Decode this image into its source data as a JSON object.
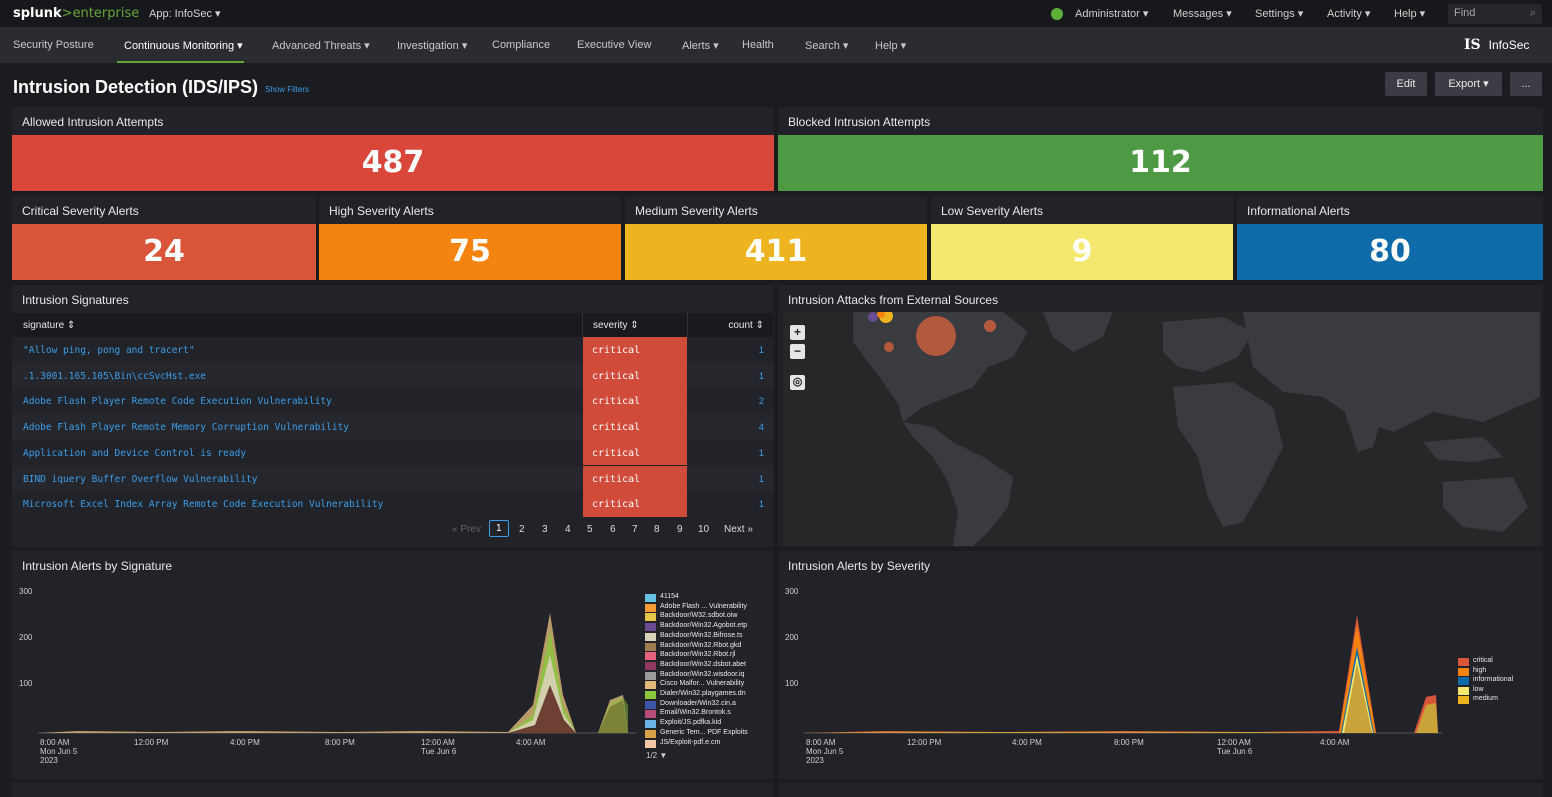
{
  "topbar": {
    "logo_splunk": "splunk",
    "logo_gt": ">",
    "logo_enterprise": "enterprise",
    "app_label": "App: InfoSec ▾",
    "menus": [
      "Administrator ▾",
      "Messages ▾",
      "Settings ▾",
      "Activity ▾",
      "Help ▾"
    ],
    "find_placeholder": "Find"
  },
  "nav": {
    "items": [
      "Security Posture",
      "Continuous Monitoring ▾",
      "Advanced Threats ▾",
      "Investigation ▾",
      "Compliance",
      "Executive View",
      "Alerts ▾",
      "Health",
      "Search ▾",
      "Help ▾"
    ],
    "active_index": 1,
    "brand_logo": "IS",
    "brand_name": "InfoSec"
  },
  "dashboard": {
    "title": "Intrusion Detection (IDS/IPS)",
    "show_filters": "Show Filters",
    "edit_label": "Edit",
    "export_label": "Export ▾",
    "more_label": "..."
  },
  "singles": {
    "allowed": {
      "title": "Allowed Intrusion Attempts",
      "value": "487",
      "color": "#d8473a"
    },
    "blocked": {
      "title": "Blocked Intrusion Attempts",
      "value": "112",
      "color": "#4e9a44"
    },
    "critical": {
      "title": "Critical Severity Alerts",
      "value": "24",
      "color": "#d8553a"
    },
    "high": {
      "title": "High Severity Alerts",
      "value": "75",
      "color": "#f5830f"
    },
    "medium": {
      "title": "Medium Severity Alerts",
      "value": "411",
      "color": "#edb41f"
    },
    "low": {
      "title": "Low Severity Alerts",
      "value": "9",
      "color": "#f4e96e"
    },
    "informational": {
      "title": "Informational Alerts",
      "value": "80",
      "color": "#0e6aa8"
    }
  },
  "signatures_table": {
    "title": "Intrusion Signatures",
    "headers": {
      "signature": "signature ⇕",
      "severity": "severity ⇕",
      "count": "count ⇕"
    },
    "rows": [
      {
        "signature": "\"Allow ping, pong and tracert\"",
        "severity": "critical",
        "count": "1"
      },
      {
        "signature": ".1.3001.165.105\\Bin\\ccSvcHst.exe",
        "severity": "critical",
        "count": "1"
      },
      {
        "signature": "Adobe Flash Player Remote Code Execution Vulnerability",
        "severity": "critical",
        "count": "2"
      },
      {
        "signature": "Adobe Flash Player Remote Memory Corruption Vulnerability",
        "severity": "critical",
        "count": "4"
      },
      {
        "signature": "Application and Device Control is ready",
        "severity": "critical",
        "count": "1"
      },
      {
        "signature": "BIND iquery Buffer Overflow Vulnerability",
        "severity": "critical",
        "count": "1"
      },
      {
        "signature": "Microsoft Excel Index Array Remote Code Execution Vulnerability",
        "severity": "critical",
        "count": "1"
      }
    ],
    "pager": {
      "prev": "« Prev",
      "pages": [
        "1",
        "2",
        "3",
        "4",
        "5",
        "6",
        "7",
        "8",
        "9",
        "10"
      ],
      "next": "Next »"
    }
  },
  "map_panel": {
    "title": "Intrusion Attacks from External Sources",
    "zoom_in": "+",
    "zoom_out": "−",
    "locate": "◎"
  },
  "chart_signature": {
    "title": "Intrusion Alerts by Signature",
    "y_ticks": [
      "300",
      "200",
      "100"
    ],
    "x_ticks": [
      [
        "8:00 AM",
        "Mon Jun 5",
        "2023"
      ],
      [
        "12:00 PM"
      ],
      [
        "4:00 PM"
      ],
      [
        "8:00 PM"
      ],
      [
        "12:00 AM",
        "Tue Jun 6"
      ],
      [
        "4:00 AM"
      ]
    ],
    "legend": [
      {
        "name": "41154",
        "color": "#66c2e0"
      },
      {
        "name": "Adobe Flash ... Vulnerability",
        "color": "#f39c34"
      },
      {
        "name": "Backdoor/W32.sdbot.oiw",
        "color": "#e5c54a"
      },
      {
        "name": "Backdoor/Win32.Agobot.etp",
        "color": "#6a4c93"
      },
      {
        "name": "Backdoor/Win32.Bifrose.ts",
        "color": "#d9d0b8"
      },
      {
        "name": "Backdoor/Win32.Rbot.gkd",
        "color": "#a07b52"
      },
      {
        "name": "Backdoor/Win32.Rbot.rjl",
        "color": "#e3627e"
      },
      {
        "name": "Backdoor/Win32.dsbot.abet",
        "color": "#8e3a5e"
      },
      {
        "name": "Backdoor/Win32.wisdoor.iq",
        "color": "#9b9b9b"
      },
      {
        "name": "Cisco Malfor... Vulnerability",
        "color": "#e0b979"
      },
      {
        "name": "Dialer/Win32.playgames.dn",
        "color": "#8cc43f"
      },
      {
        "name": "Downloader/Win32.cin.a",
        "color": "#3f55a8"
      },
      {
        "name": "Email/Win32.Brontok.s",
        "color": "#b64d7a"
      },
      {
        "name": "Exploit/JS.pdfka.kid",
        "color": "#6bb4e8"
      },
      {
        "name": "Generic Tem... PDF Exploits",
        "color": "#d8a24a"
      },
      {
        "name": "JS/Exploit-pdf.e.cm",
        "color": "#f3c6a6"
      }
    ],
    "legend_pager": "1/2 ▼"
  },
  "chart_severity": {
    "title": "Intrusion Alerts by Severity",
    "y_ticks": [
      "300",
      "200",
      "100"
    ],
    "x_ticks": [
      [
        "8:00 AM",
        "Mon Jun 5",
        "2023"
      ],
      [
        "12:00 PM"
      ],
      [
        "4:00 PM"
      ],
      [
        "8:00 PM"
      ],
      [
        "12:00 AM",
        "Tue Jun 6"
      ],
      [
        "4:00 AM"
      ]
    ],
    "legend": [
      {
        "name": "critical",
        "color": "#d8553a"
      },
      {
        "name": "high",
        "color": "#f5830f"
      },
      {
        "name": "informational",
        "color": "#0e6aa8"
      },
      {
        "name": "low",
        "color": "#f4e96e"
      },
      {
        "name": "medium",
        "color": "#edb41f"
      }
    ]
  }
}
